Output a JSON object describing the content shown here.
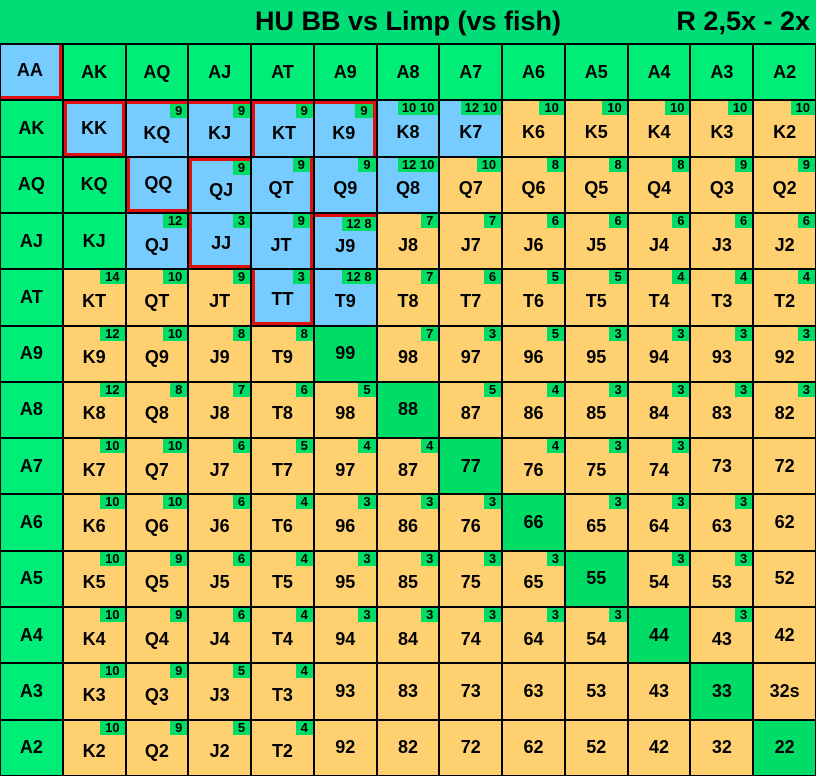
{
  "title": "HU BB vs Limp (vs fish)",
  "raise_sizing": "R 2,5x - 2x",
  "colors": {
    "header": "#00ee77",
    "pair": "#00dd66",
    "raise": "#77ccff",
    "call": "#ffd070",
    "highlight": "#e01010"
  },
  "grid": [
    [
      {
        "t": "AA",
        "c": "blue"
      },
      {
        "t": "AK",
        "c": "header"
      },
      {
        "t": "AQ",
        "c": "header"
      },
      {
        "t": "AJ",
        "c": "header"
      },
      {
        "t": "AT",
        "c": "header"
      },
      {
        "t": "A9",
        "c": "header"
      },
      {
        "t": "A8",
        "c": "header"
      },
      {
        "t": "A7",
        "c": "header"
      },
      {
        "t": "A6",
        "c": "header"
      },
      {
        "t": "A5",
        "c": "header"
      },
      {
        "t": "A4",
        "c": "header"
      },
      {
        "t": "A3",
        "c": "header"
      },
      {
        "t": "A2",
        "c": "header"
      }
    ],
    [
      {
        "t": "AK",
        "c": "header"
      },
      {
        "t": "KK",
        "c": "blue"
      },
      {
        "t": "KQ",
        "c": "blue",
        "n": "9"
      },
      {
        "t": "KJ",
        "c": "blue",
        "n": "9"
      },
      {
        "t": "KT",
        "c": "blue",
        "n": "9"
      },
      {
        "t": "K9",
        "c": "blue",
        "n": "9"
      },
      {
        "t": "K8",
        "c": "blue",
        "n": "10 10"
      },
      {
        "t": "K7",
        "c": "blue",
        "n": "12 10"
      },
      {
        "t": "K6",
        "c": "tan",
        "n": "10"
      },
      {
        "t": "K5",
        "c": "tan",
        "n": "10"
      },
      {
        "t": "K4",
        "c": "tan",
        "n": "10"
      },
      {
        "t": "K3",
        "c": "tan",
        "n": "10"
      },
      {
        "t": "K2",
        "c": "tan",
        "n": "10"
      }
    ],
    [
      {
        "t": "AQ",
        "c": "header"
      },
      {
        "t": "KQ",
        "c": "header"
      },
      {
        "t": "QQ",
        "c": "blue"
      },
      {
        "t": "QJ",
        "c": "blue",
        "n": "9"
      },
      {
        "t": "QT",
        "c": "blue",
        "n": "9"
      },
      {
        "t": "Q9",
        "c": "blue",
        "n": "9"
      },
      {
        "t": "Q8",
        "c": "blue",
        "n": "12 10"
      },
      {
        "t": "Q7",
        "c": "tan",
        "n": "10"
      },
      {
        "t": "Q6",
        "c": "tan",
        "n": "8"
      },
      {
        "t": "Q5",
        "c": "tan",
        "n": "8"
      },
      {
        "t": "Q4",
        "c": "tan",
        "n": "8"
      },
      {
        "t": "Q3",
        "c": "tan",
        "n": "9"
      },
      {
        "t": "Q2",
        "c": "tan",
        "n": "9"
      }
    ],
    [
      {
        "t": "AJ",
        "c": "header"
      },
      {
        "t": "KJ",
        "c": "header"
      },
      {
        "t": "QJ",
        "c": "blue",
        "n": "12"
      },
      {
        "t": "JJ",
        "c": "blue",
        "n": "3"
      },
      {
        "t": "JT",
        "c": "blue",
        "n": "9"
      },
      {
        "t": "J9",
        "c": "blue",
        "n": "12 8"
      },
      {
        "t": "J8",
        "c": "tan",
        "n": "7"
      },
      {
        "t": "J7",
        "c": "tan",
        "n": "7"
      },
      {
        "t": "J6",
        "c": "tan",
        "n": "6"
      },
      {
        "t": "J5",
        "c": "tan",
        "n": "6"
      },
      {
        "t": "J4",
        "c": "tan",
        "n": "6"
      },
      {
        "t": "J3",
        "c": "tan",
        "n": "6"
      },
      {
        "t": "J2",
        "c": "tan",
        "n": "6"
      }
    ],
    [
      {
        "t": "AT",
        "c": "header"
      },
      {
        "t": "KT",
        "c": "tan",
        "n": "14"
      },
      {
        "t": "QT",
        "c": "tan",
        "n": "10"
      },
      {
        "t": "JT",
        "c": "tan",
        "n": "9"
      },
      {
        "t": "TT",
        "c": "blue",
        "n": "3"
      },
      {
        "t": "T9",
        "c": "blue",
        "n": "12 8"
      },
      {
        "t": "T8",
        "c": "tan",
        "n": "7"
      },
      {
        "t": "T7",
        "c": "tan",
        "n": "6"
      },
      {
        "t": "T6",
        "c": "tan",
        "n": "5"
      },
      {
        "t": "T5",
        "c": "tan",
        "n": "5"
      },
      {
        "t": "T4",
        "c": "tan",
        "n": "4"
      },
      {
        "t": "T3",
        "c": "tan",
        "n": "4"
      },
      {
        "t": "T2",
        "c": "tan",
        "n": "4"
      }
    ],
    [
      {
        "t": "A9",
        "c": "header"
      },
      {
        "t": "K9",
        "c": "tan",
        "n": "12"
      },
      {
        "t": "Q9",
        "c": "tan",
        "n": "10"
      },
      {
        "t": "J9",
        "c": "tan",
        "n": "8"
      },
      {
        "t": "T9",
        "c": "tan",
        "n": "8"
      },
      {
        "t": "99",
        "c": "pair"
      },
      {
        "t": "98",
        "c": "tan",
        "n": "7"
      },
      {
        "t": "97",
        "c": "tan",
        "n": "3"
      },
      {
        "t": "96",
        "c": "tan",
        "n": "5"
      },
      {
        "t": "95",
        "c": "tan",
        "n": "3"
      },
      {
        "t": "94",
        "c": "tan",
        "n": "3"
      },
      {
        "t": "93",
        "c": "tan",
        "n": "3"
      },
      {
        "t": "92",
        "c": "tan",
        "n": "3"
      }
    ],
    [
      {
        "t": "A8",
        "c": "header"
      },
      {
        "t": "K8",
        "c": "tan",
        "n": "12"
      },
      {
        "t": "Q8",
        "c": "tan",
        "n": "8"
      },
      {
        "t": "J8",
        "c": "tan",
        "n": "7"
      },
      {
        "t": "T8",
        "c": "tan",
        "n": "6"
      },
      {
        "t": "98",
        "c": "tan",
        "n": "5"
      },
      {
        "t": "88",
        "c": "pair"
      },
      {
        "t": "87",
        "c": "tan",
        "n": "5"
      },
      {
        "t": "86",
        "c": "tan",
        "n": "4"
      },
      {
        "t": "85",
        "c": "tan",
        "n": "3"
      },
      {
        "t": "84",
        "c": "tan",
        "n": "3"
      },
      {
        "t": "83",
        "c": "tan",
        "n": "3"
      },
      {
        "t": "82",
        "c": "tan",
        "n": "3"
      }
    ],
    [
      {
        "t": "A7",
        "c": "header"
      },
      {
        "t": "K7",
        "c": "tan",
        "n": "10"
      },
      {
        "t": "Q7",
        "c": "tan",
        "n": "10"
      },
      {
        "t": "J7",
        "c": "tan",
        "n": "6"
      },
      {
        "t": "T7",
        "c": "tan",
        "n": "5"
      },
      {
        "t": "97",
        "c": "tan",
        "n": "4"
      },
      {
        "t": "87",
        "c": "tan",
        "n": "4"
      },
      {
        "t": "77",
        "c": "pair"
      },
      {
        "t": "76",
        "c": "tan",
        "n": "4"
      },
      {
        "t": "75",
        "c": "tan",
        "n": "3"
      },
      {
        "t": "74",
        "c": "tan",
        "n": "3"
      },
      {
        "t": "73",
        "c": "tan"
      },
      {
        "t": "72",
        "c": "tan"
      }
    ],
    [
      {
        "t": "A6",
        "c": "header"
      },
      {
        "t": "K6",
        "c": "tan",
        "n": "10"
      },
      {
        "t": "Q6",
        "c": "tan",
        "n": "10"
      },
      {
        "t": "J6",
        "c": "tan",
        "n": "6"
      },
      {
        "t": "T6",
        "c": "tan",
        "n": "4"
      },
      {
        "t": "96",
        "c": "tan",
        "n": "3"
      },
      {
        "t": "86",
        "c": "tan",
        "n": "3"
      },
      {
        "t": "76",
        "c": "tan",
        "n": "3"
      },
      {
        "t": "66",
        "c": "pair"
      },
      {
        "t": "65",
        "c": "tan",
        "n": "3"
      },
      {
        "t": "64",
        "c": "tan",
        "n": "3"
      },
      {
        "t": "63",
        "c": "tan",
        "n": "3"
      },
      {
        "t": "62",
        "c": "tan"
      }
    ],
    [
      {
        "t": "A5",
        "c": "header"
      },
      {
        "t": "K5",
        "c": "tan",
        "n": "10"
      },
      {
        "t": "Q5",
        "c": "tan",
        "n": "9"
      },
      {
        "t": "J5",
        "c": "tan",
        "n": "6"
      },
      {
        "t": "T5",
        "c": "tan",
        "n": "4"
      },
      {
        "t": "95",
        "c": "tan",
        "n": "3"
      },
      {
        "t": "85",
        "c": "tan",
        "n": "3"
      },
      {
        "t": "75",
        "c": "tan",
        "n": "3"
      },
      {
        "t": "65",
        "c": "tan",
        "n": "3"
      },
      {
        "t": "55",
        "c": "pair"
      },
      {
        "t": "54",
        "c": "tan",
        "n": "3"
      },
      {
        "t": "53",
        "c": "tan",
        "n": "3"
      },
      {
        "t": "52",
        "c": "tan"
      }
    ],
    [
      {
        "t": "A4",
        "c": "header"
      },
      {
        "t": "K4",
        "c": "tan",
        "n": "10"
      },
      {
        "t": "Q4",
        "c": "tan",
        "n": "9"
      },
      {
        "t": "J4",
        "c": "tan",
        "n": "6"
      },
      {
        "t": "T4",
        "c": "tan",
        "n": "4"
      },
      {
        "t": "94",
        "c": "tan",
        "n": "3"
      },
      {
        "t": "84",
        "c": "tan",
        "n": "3"
      },
      {
        "t": "74",
        "c": "tan",
        "n": "3"
      },
      {
        "t": "64",
        "c": "tan",
        "n": "3"
      },
      {
        "t": "54",
        "c": "tan",
        "n": "3"
      },
      {
        "t": "44",
        "c": "pair"
      },
      {
        "t": "43",
        "c": "tan",
        "n": "3"
      },
      {
        "t": "42",
        "c": "tan"
      }
    ],
    [
      {
        "t": "A3",
        "c": "header"
      },
      {
        "t": "K3",
        "c": "tan",
        "n": "10"
      },
      {
        "t": "Q3",
        "c": "tan",
        "n": "9"
      },
      {
        "t": "J3",
        "c": "tan",
        "n": "5"
      },
      {
        "t": "T3",
        "c": "tan",
        "n": "4"
      },
      {
        "t": "93",
        "c": "tan"
      },
      {
        "t": "83",
        "c": "tan"
      },
      {
        "t": "73",
        "c": "tan"
      },
      {
        "t": "63",
        "c": "tan"
      },
      {
        "t": "53",
        "c": "tan"
      },
      {
        "t": "43",
        "c": "tan"
      },
      {
        "t": "33",
        "c": "pair"
      },
      {
        "t": "32s",
        "c": "tan"
      }
    ],
    [
      {
        "t": "A2",
        "c": "header"
      },
      {
        "t": "K2",
        "c": "tan",
        "n": "10"
      },
      {
        "t": "Q2",
        "c": "tan",
        "n": "9"
      },
      {
        "t": "J2",
        "c": "tan",
        "n": "5"
      },
      {
        "t": "T2",
        "c": "tan",
        "n": "4"
      },
      {
        "t": "92",
        "c": "tan"
      },
      {
        "t": "82",
        "c": "tan"
      },
      {
        "t": "72",
        "c": "tan"
      },
      {
        "t": "62",
        "c": "tan"
      },
      {
        "t": "52",
        "c": "tan"
      },
      {
        "t": "42",
        "c": "tan"
      },
      {
        "t": "32",
        "c": "tan"
      },
      {
        "t": "22",
        "c": "pair"
      }
    ]
  ]
}
